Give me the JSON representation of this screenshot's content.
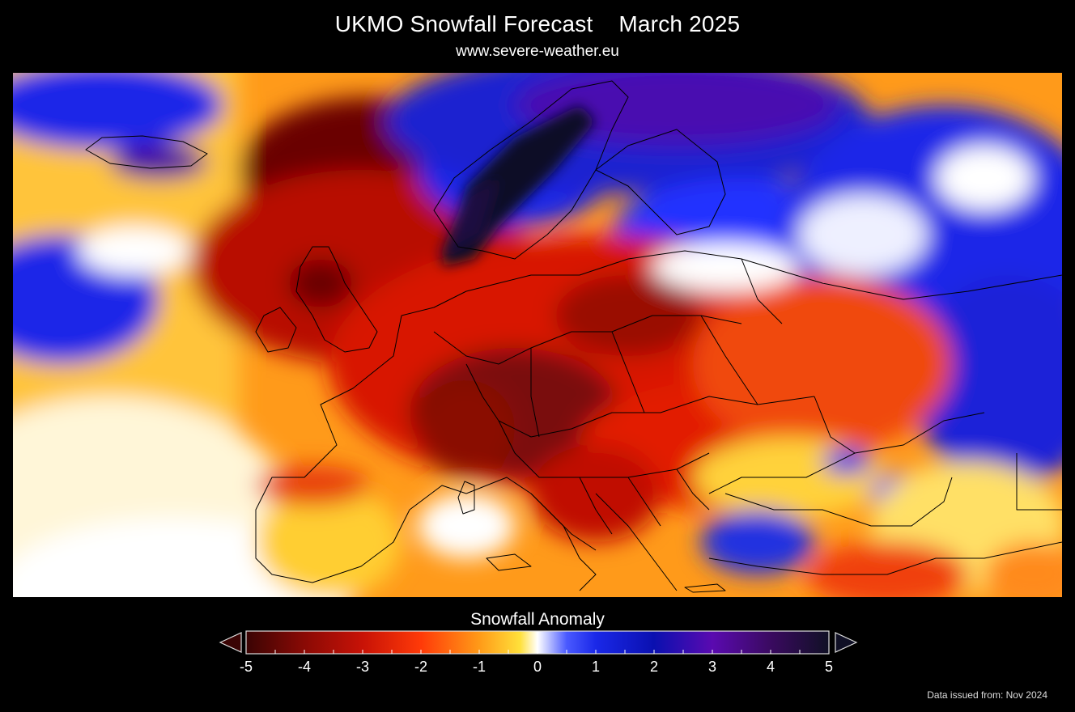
{
  "header": {
    "title": "UKMO Snowfall Forecast    March 2025",
    "subtitle": "www.severe-weather.eu"
  },
  "legend": {
    "title": "Snowfall Anomaly",
    "ticks": [
      "-5",
      "-4",
      "-3",
      "-2",
      "-1",
      "0",
      "1",
      "2",
      "3",
      "4",
      "5"
    ],
    "colors": [
      "#3a0404",
      "#8a0a05",
      "#e21a05",
      "#ff7a10",
      "#ffd21c",
      "#ffffff",
      "#2030ff",
      "#0a10b0",
      "#5a0ab0",
      "#4a0a70",
      "#101025"
    ]
  },
  "footer": {
    "issued": "Data issued from: Nov 2024"
  },
  "map_regions": [
    {
      "name": "Scandinavia",
      "anomaly": "strong positive"
    },
    {
      "name": "Russia",
      "anomaly": "positive"
    },
    {
      "name": "Central Europe",
      "anomaly": "strong negative"
    },
    {
      "name": "British Isles",
      "anomaly": "strong negative"
    },
    {
      "name": "Iberia",
      "anomaly": "near zero"
    },
    {
      "name": "Turkey",
      "anomaly": "mixed"
    }
  ]
}
